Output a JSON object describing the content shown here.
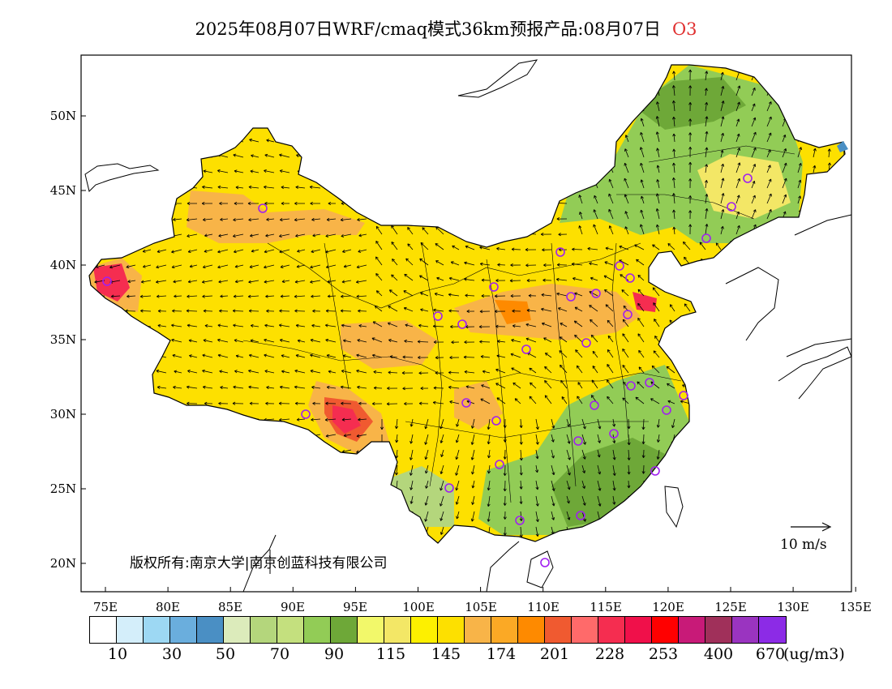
{
  "title": {
    "text": "2025年08月07日WRF/cmaq模式36km预报产品:08月07日",
    "species": "O3"
  },
  "copyright": "版权所有:南京大学|南京创蓝科技有限公司",
  "wind_reference": "10 m/s",
  "latitude_labels": [
    "50N",
    "45N",
    "40N",
    "35N",
    "30N",
    "25N",
    "20N"
  ],
  "longitude_labels": [
    "75E",
    "80E",
    "85E",
    "90E",
    "95E",
    "100E",
    "105E",
    "110E",
    "115E",
    "120E",
    "125E",
    "130E",
    "135E"
  ],
  "colorbar": {
    "colors": [
      "#ffffff",
      "#d4eefa",
      "#9dd8f3",
      "#6aaedd",
      "#4a8fc4",
      "#dcebbb",
      "#b4d67c",
      "#c4e07e",
      "#92cc56",
      "#6ea838",
      "#f2f86a",
      "#f3e766",
      "#fdf000",
      "#fde000",
      "#f8b448",
      "#fba925",
      "#fe8a00",
      "#f05a30",
      "#ff6a6a",
      "#f52d50",
      "#f0104a",
      "#ff0000",
      "#c81a78",
      "#a0305a",
      "#9a34c0",
      "#8c2be6"
    ],
    "labels": [
      "10",
      "30",
      "50",
      "70",
      "90",
      "115",
      "145",
      "174",
      "201",
      "228",
      "253",
      "400",
      "670"
    ],
    "unit": "(ug/m3)"
  },
  "map_colors": {
    "background": "#ffffff",
    "border": "#000000",
    "station_marker": "#a020f0"
  }
}
